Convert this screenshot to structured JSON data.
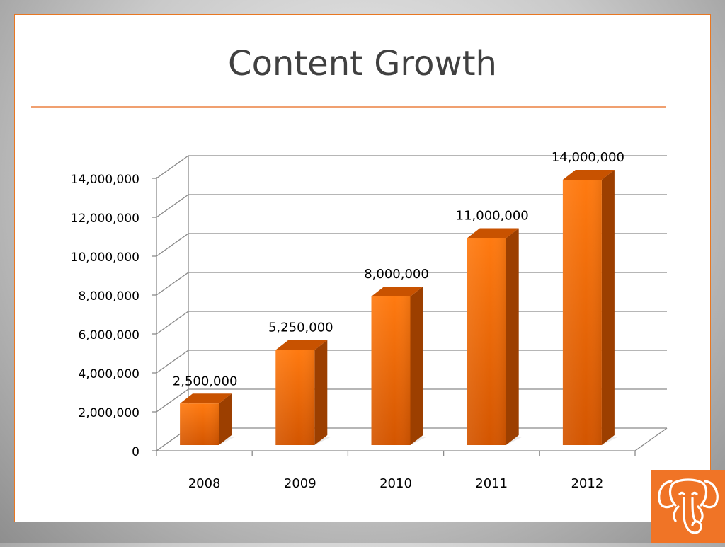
{
  "slide": {
    "title": "Content Growth"
  },
  "colors": {
    "accent": "#e87722",
    "bar_front_top": "#ff7a10",
    "bar_front_bottom": "#d95a00",
    "bar_side": "#9c3f00",
    "bar_top": "#c85200",
    "grid": "#8a8a8a",
    "text": "#000000",
    "logo_bg": "#f07426"
  },
  "chart_data": {
    "type": "bar",
    "categories": [
      "2008",
      "2009",
      "2010",
      "2011",
      "2012"
    ],
    "values": [
      2500000,
      5250000,
      8000000,
      11000000,
      14000000
    ],
    "data_labels": [
      "2,500,000",
      "5,250,000",
      "8,000,000",
      "11,000,000",
      "14,000,000"
    ],
    "y_ticks": [
      0,
      2000000,
      4000000,
      6000000,
      8000000,
      10000000,
      12000000,
      14000000
    ],
    "y_tick_labels": [
      "0",
      "2,000,000",
      "4,000,000",
      "6,000,000",
      "8,000,000",
      "10,000,000",
      "12,000,000",
      "14,000,000"
    ],
    "ylim": [
      0,
      14000000
    ],
    "title": "",
    "xlabel": "",
    "ylabel": "",
    "grid": true,
    "style": "3d"
  },
  "logo": {
    "icon": "elephant-icon"
  }
}
